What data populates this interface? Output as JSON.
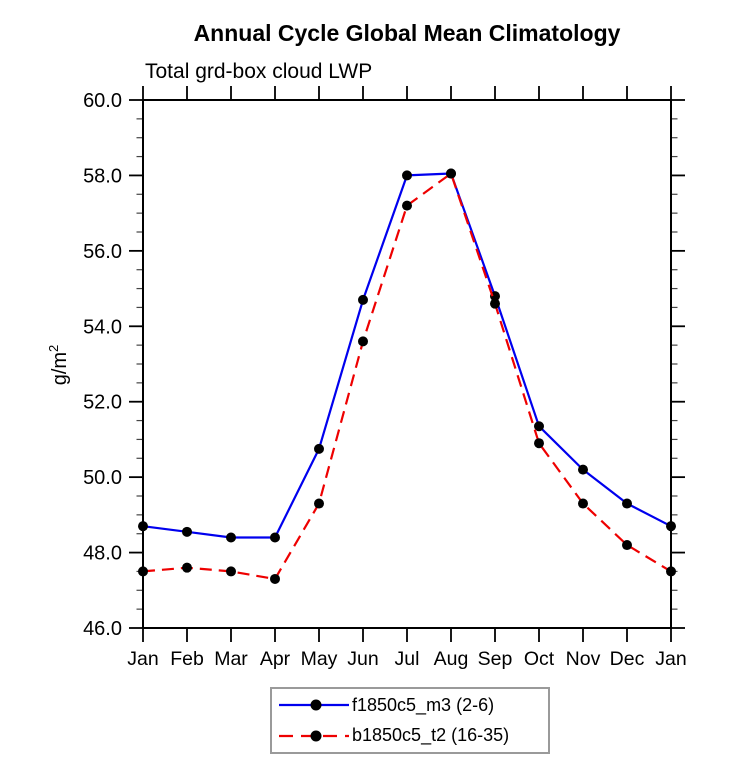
{
  "chart": {
    "title": "Annual Cycle Global Mean Climatology",
    "subtitle": "Total grd-box cloud LWP",
    "ylabel": "g/m²"
  },
  "chart_data": {
    "type": "line",
    "title": "Annual Cycle Global Mean Climatology",
    "subtitle": "Total grd-box cloud LWP",
    "ylabel": "g/m²",
    "categories": [
      "Jan",
      "Feb",
      "Mar",
      "Apr",
      "May",
      "Jun",
      "Jul",
      "Aug",
      "Sep",
      "Oct",
      "Nov",
      "Dec",
      "Jan"
    ],
    "series": [
      {
        "name": "f1850c5_m3 (2-6)",
        "color": "#0000ee",
        "line_style": "solid",
        "marker": "filled-circle",
        "marker_color": "#000000",
        "values": [
          48.7,
          48.55,
          48.4,
          48.4,
          50.75,
          54.7,
          58.0,
          58.05,
          54.8,
          51.35,
          50.2,
          49.3,
          48.7
        ]
      },
      {
        "name": "b1850c5_t2 (16-35)",
        "color": "#ee0000",
        "line_style": "dashed",
        "marker": "filled-circle",
        "marker_color": "#000000",
        "values": [
          47.5,
          47.6,
          47.5,
          47.3,
          49.3,
          53.6,
          57.2,
          58.05,
          54.6,
          50.9,
          49.3,
          48.2,
          47.5
        ]
      }
    ],
    "ylim": [
      46.0,
      60.0
    ],
    "ytick_major": 2.0,
    "ytick_minor": 0.5,
    "ytick_format_decimals": 1,
    "grid": false,
    "axis_frame": "box",
    "tick_direction": "out",
    "legend_position": "bottom-center"
  }
}
